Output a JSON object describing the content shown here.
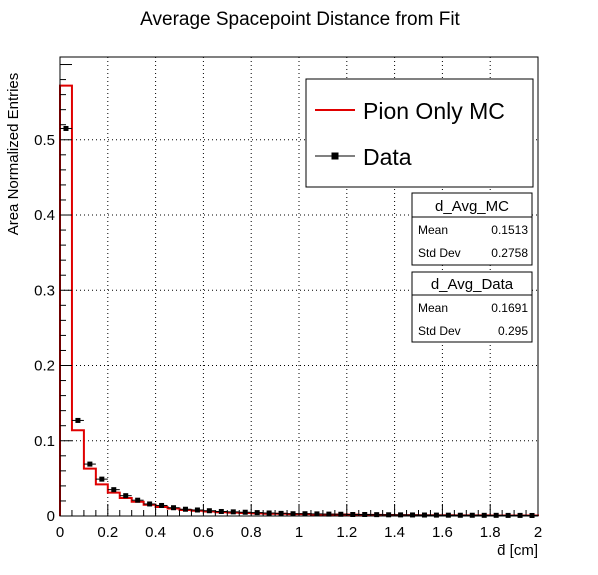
{
  "chart_data": {
    "type": "histogram",
    "title": "Average Spacepoint Distance from Fit",
    "xlabel": "d̄ [cm]",
    "ylabel": "Area Normalized Entries",
    "xlim": [
      0,
      2
    ],
    "ylim": [
      0,
      0.61
    ],
    "grid": true,
    "x_ticks": [
      0,
      0.2,
      0.4,
      0.6,
      0.8,
      1,
      1.2,
      1.4,
      1.6,
      1.8,
      2
    ],
    "x_tick_labels": [
      "0",
      "0.2",
      "0.4",
      "0.6",
      "0.8",
      "1",
      "1.2",
      "1.4",
      "1.6",
      "1.8",
      "2"
    ],
    "y_ticks": [
      0,
      0.1,
      0.2,
      0.3,
      0.4,
      0.5
    ],
    "y_tick_labels": [
      "0",
      "0.1",
      "0.2",
      "0.3",
      "0.4",
      "0.5"
    ],
    "bin_edges": [
      0,
      0.05,
      0.1,
      0.15,
      0.2,
      0.25,
      0.3,
      0.35,
      0.4,
      0.45,
      0.5,
      0.55,
      0.6,
      0.65,
      0.7,
      0.75,
      0.8,
      0.85,
      0.9,
      0.95,
      1,
      1.05,
      1.1,
      1.15,
      1.2,
      1.25,
      1.3,
      1.35,
      1.4,
      1.45,
      1.5,
      1.55,
      1.6,
      1.65,
      1.7,
      1.75,
      1.8,
      1.85,
      1.9,
      1.95,
      2
    ],
    "series": [
      {
        "name": "Pion Only MC",
        "style": "step",
        "color": "#e00000",
        "values": [
          0.572,
          0.114,
          0.063,
          0.042,
          0.031,
          0.024,
          0.019,
          0.015,
          0.012,
          0.01,
          0.008,
          0.007,
          0.006,
          0.005,
          0.0045,
          0.004,
          0.0035,
          0.003,
          0.003,
          0.0025,
          0.0025,
          0.002,
          0.002,
          0.002,
          0.0018,
          0.0015,
          0.0015,
          0.0013,
          0.0012,
          0.0012,
          0.001,
          0.001,
          0.001,
          0.0009,
          0.0008,
          0.0008,
          0.0007,
          0.0007,
          0.0006,
          0.0006
        ]
      },
      {
        "name": "Data",
        "style": "points",
        "color": "#000000",
        "values": [
          0.515,
          0.127,
          0.069,
          0.049,
          0.035,
          0.027,
          0.021,
          0.016,
          0.014,
          0.011,
          0.009,
          0.008,
          0.007,
          0.006,
          0.0055,
          0.005,
          0.0045,
          0.004,
          0.0035,
          0.003,
          0.003,
          0.0028,
          0.0025,
          0.0023,
          0.002,
          0.002,
          0.0018,
          0.0016,
          0.0015,
          0.0014,
          0.0013,
          0.0012,
          0.0011,
          0.001,
          0.001,
          0.0009,
          0.0009,
          0.0008,
          0.0008,
          0.0007
        ],
        "errors": [
          0.003,
          0.002,
          0.0015,
          0.0012,
          0.001,
          0.001,
          0.0009,
          0.0008,
          0.0008,
          0.0007,
          0.0007,
          0.0006,
          0.0006,
          0.0006,
          0.0005,
          0.0005,
          0.0005,
          0.0005,
          0.0005,
          0.0004,
          0.0004,
          0.0004,
          0.0004,
          0.0004,
          0.0004,
          0.0004,
          0.0003,
          0.0003,
          0.0003,
          0.0003,
          0.0003,
          0.0003,
          0.0003,
          0.0003,
          0.0003,
          0.0003,
          0.0003,
          0.0003,
          0.0003,
          0.0003
        ]
      }
    ],
    "legend": {
      "position": "top-right",
      "entries": [
        "Pion Only MC",
        "Data"
      ]
    },
    "stats_boxes": [
      {
        "name": "d_Avg_MC",
        "mean_label": "Mean",
        "mean": "0.1513",
        "std_label": "Std Dev",
        "std": "0.2758"
      },
      {
        "name": "d_Avg_Data",
        "mean_label": "Mean",
        "mean": "0.1691",
        "std_label": "Std Dev",
        "std": "0.295"
      }
    ]
  }
}
